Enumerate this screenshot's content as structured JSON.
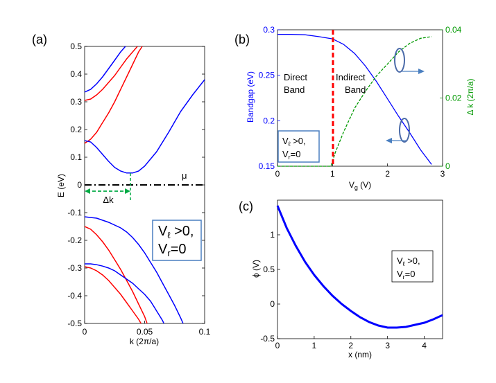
{
  "chart_data": [
    {
      "type": "line",
      "panel_label": "(a)",
      "xlabel": "k (2π/a)",
      "ylabel": "E (eV)",
      "xlim": [
        0,
        0.1
      ],
      "ylim": [
        -0.5,
        0.5
      ],
      "x_ticks": [
        "0",
        "0.05",
        "0.1"
      ],
      "y_ticks": [
        "-0.5",
        "-0.4",
        "-0.3",
        "-0.2",
        "-0.1",
        "0",
        "0.1",
        "0.2",
        "0.3",
        "0.4",
        "0.5"
      ],
      "series": [
        {
          "name": "blue-conduction-upper",
          "color": "#0000ff",
          "points": [
            [
              0,
              0.335
            ],
            [
              0.005,
              0.345
            ],
            [
              0.01,
              0.365
            ],
            [
              0.015,
              0.39
            ],
            [
              0.02,
              0.42
            ],
            [
              0.025,
              0.45
            ],
            [
              0.03,
              0.48
            ],
            [
              0.034,
              0.5
            ]
          ]
        },
        {
          "name": "red-conduction-upper",
          "color": "#ff0000",
          "points": [
            [
              0,
              0.305
            ],
            [
              0.005,
              0.31
            ],
            [
              0.01,
              0.325
            ],
            [
              0.015,
              0.345
            ],
            [
              0.02,
              0.37
            ],
            [
              0.025,
              0.395
            ],
            [
              0.03,
              0.425
            ],
            [
              0.035,
              0.455
            ],
            [
              0.04,
              0.48
            ],
            [
              0.044,
              0.5
            ]
          ]
        },
        {
          "name": "red-conduction-lower",
          "color": "#ff0000",
          "points": [
            [
              0,
              0.15
            ],
            [
              0.005,
              0.165
            ],
            [
              0.01,
              0.19
            ],
            [
              0.015,
              0.225
            ],
            [
              0.02,
              0.26
            ],
            [
              0.025,
              0.3
            ],
            [
              0.03,
              0.345
            ],
            [
              0.035,
              0.39
            ],
            [
              0.04,
              0.435
            ],
            [
              0.045,
              0.48
            ],
            [
              0.048,
              0.5
            ]
          ]
        },
        {
          "name": "blue-conduction-lower",
          "color": "#0000ff",
          "points": [
            [
              0,
              0.16
            ],
            [
              0.005,
              0.155
            ],
            [
              0.01,
              0.135
            ],
            [
              0.015,
              0.11
            ],
            [
              0.02,
              0.085
            ],
            [
              0.025,
              0.063
            ],
            [
              0.03,
              0.05
            ],
            [
              0.035,
              0.043
            ],
            [
              0.04,
              0.043
            ],
            [
              0.045,
              0.05
            ],
            [
              0.05,
              0.068
            ],
            [
              0.06,
              0.12
            ],
            [
              0.07,
              0.19
            ],
            [
              0.08,
              0.265
            ],
            [
              0.09,
              0.325
            ],
            [
              0.1,
              0.38
            ]
          ]
        },
        {
          "name": "blue-valence-upper",
          "color": "#0000ff",
          "points": [
            [
              0,
              -0.115
            ],
            [
              0.01,
              -0.12
            ],
            [
              0.02,
              -0.135
            ],
            [
              0.03,
              -0.155
            ],
            [
              0.035,
              -0.17
            ],
            [
              0.04,
              -0.19
            ],
            [
              0.045,
              -0.215
            ],
            [
              0.05,
              -0.245
            ],
            [
              0.055,
              -0.28
            ],
            [
              0.06,
              -0.315
            ],
            [
              0.065,
              -0.355
            ],
            [
              0.07,
              -0.395
            ],
            [
              0.075,
              -0.435
            ],
            [
              0.08,
              -0.48
            ],
            [
              0.082,
              -0.5
            ]
          ]
        },
        {
          "name": "red-valence-upper",
          "color": "#ff0000",
          "points": [
            [
              0,
              -0.15
            ],
            [
              0.005,
              -0.16
            ],
            [
              0.01,
              -0.18
            ],
            [
              0.015,
              -0.205
            ],
            [
              0.02,
              -0.235
            ],
            [
              0.025,
              -0.27
            ],
            [
              0.03,
              -0.305
            ],
            [
              0.035,
              -0.345
            ],
            [
              0.04,
              -0.385
            ],
            [
              0.045,
              -0.43
            ],
            [
              0.05,
              -0.475
            ],
            [
              0.052,
              -0.5
            ]
          ]
        },
        {
          "name": "blue-valence-lower",
          "color": "#0000ff",
          "points": [
            [
              0,
              -0.285
            ],
            [
              0.005,
              -0.285
            ],
            [
              0.01,
              -0.288
            ],
            [
              0.015,
              -0.293
            ],
            [
              0.02,
              -0.3
            ],
            [
              0.025,
              -0.31
            ],
            [
              0.03,
              -0.325
            ],
            [
              0.035,
              -0.34
            ],
            [
              0.04,
              -0.355
            ],
            [
              0.045,
              -0.375
            ],
            [
              0.05,
              -0.395
            ],
            [
              0.055,
              -0.42
            ],
            [
              0.06,
              -0.455
            ],
            [
              0.065,
              -0.49
            ],
            [
              0.066,
              -0.5
            ]
          ]
        },
        {
          "name": "red-valence-lower",
          "color": "#ff0000",
          "points": [
            [
              0,
              -0.295
            ],
            [
              0.005,
              -0.3
            ],
            [
              0.01,
              -0.31
            ],
            [
              0.015,
              -0.325
            ],
            [
              0.02,
              -0.345
            ],
            [
              0.025,
              -0.37
            ],
            [
              0.03,
              -0.395
            ],
            [
              0.035,
              -0.425
            ],
            [
              0.04,
              -0.455
            ],
            [
              0.045,
              -0.485
            ],
            [
              0.047,
              -0.5
            ]
          ]
        }
      ],
      "mu_line": {
        "label": "μ",
        "y": 0,
        "color": "#000000"
      },
      "delta_k": {
        "label": "Δk",
        "k": 0.038,
        "color": "#00aa44"
      },
      "annotation_box": {
        "line1_main": "V",
        "line1_sub": "ℓ",
        "line1_rest": " >0,",
        "line2_main": "V",
        "line2_sub": "r",
        "line2_rest": "=0",
        "border": "#4a7fc0"
      }
    },
    {
      "type": "line",
      "panel_label": "(b)",
      "xlabel_main": "V",
      "xlabel_sub": "g",
      "xlabel_rest": " (V)",
      "ylabel_left": "Bandgap (eV)",
      "ylabel_right": "Δ k (2π/a)",
      "xlim": [
        0,
        3
      ],
      "ylim_left": [
        0.15,
        0.3
      ],
      "ylim_right": [
        0,
        0.04
      ],
      "x_ticks": [
        "0",
        "1",
        "2",
        "3"
      ],
      "y_ticks_left": [
        "0.15",
        "0.2",
        "0.25",
        "0.3"
      ],
      "y_ticks_right": [
        "0",
        "0.02",
        "0.04"
      ],
      "left_color": "#0000ff",
      "right_color": "#009900",
      "series": [
        {
          "name": "Bandgap",
          "axis": "left",
          "color": "#0000ff",
          "points": [
            [
              0,
              0.295
            ],
            [
              0.25,
              0.295
            ],
            [
              0.5,
              0.2945
            ],
            [
              0.75,
              0.2925
            ],
            [
              1.0,
              0.29
            ],
            [
              1.2,
              0.284
            ],
            [
              1.4,
              0.274
            ],
            [
              1.6,
              0.26
            ],
            [
              1.8,
              0.243
            ],
            [
              2.0,
              0.224
            ],
            [
              2.2,
              0.205
            ],
            [
              2.4,
              0.187
            ],
            [
              2.6,
              0.168
            ],
            [
              2.8,
              0.152
            ]
          ]
        },
        {
          "name": "Delta k",
          "axis": "right",
          "color": "#009900",
          "dashed": true,
          "points": [
            [
              0,
              0.0
            ],
            [
              0.5,
              0.0
            ],
            [
              0.97,
              0.0
            ],
            [
              1.05,
              0.004
            ],
            [
              1.2,
              0.01
            ],
            [
              1.4,
              0.017
            ],
            [
              1.6,
              0.022
            ],
            [
              1.8,
              0.0265
            ],
            [
              2.0,
              0.03
            ],
            [
              2.2,
              0.0335
            ],
            [
              2.4,
              0.036
            ],
            [
              2.6,
              0.0375
            ],
            [
              2.8,
              0.038
            ]
          ]
        }
      ],
      "transition_line": {
        "x": 1.0,
        "color": "#ff0000"
      },
      "direct_label": [
        "Direct",
        "Band"
      ],
      "indirect_label": [
        "Indirect",
        "Band"
      ],
      "annotation_box": {
        "line1_main": "V",
        "line1_sub": "ℓ",
        "line1_rest": " >0,",
        "line2_main": "V",
        "line2_sub": "r",
        "line2_rest": "=0",
        "border": "#4a7fc0"
      }
    },
    {
      "type": "line",
      "panel_label": "(c)",
      "xlabel": "x (nm)",
      "ylabel": "ϕ (V)",
      "xlim": [
        0,
        4.5
      ],
      "ylim": [
        -0.5,
        1.5
      ],
      "x_ticks": [
        "0",
        "1",
        "2",
        "3",
        "4"
      ],
      "y_ticks": [
        "-0.5",
        "0",
        "0.5",
        "1"
      ],
      "series": [
        {
          "name": "phi",
          "color": "#0000ff",
          "points": [
            [
              0,
              1.42
            ],
            [
              0.25,
              1.1
            ],
            [
              0.5,
              0.84
            ],
            [
              0.75,
              0.61
            ],
            [
              1.0,
              0.42
            ],
            [
              1.25,
              0.26
            ],
            [
              1.5,
              0.12
            ],
            [
              1.75,
              0.0
            ],
            [
              2.0,
              -0.1
            ],
            [
              2.25,
              -0.19
            ],
            [
              2.5,
              -0.26
            ],
            [
              2.75,
              -0.31
            ],
            [
              3.0,
              -0.34
            ],
            [
              3.25,
              -0.34
            ],
            [
              3.5,
              -0.33
            ],
            [
              3.75,
              -0.3
            ],
            [
              4.0,
              -0.27
            ],
            [
              4.25,
              -0.22
            ],
            [
              4.5,
              -0.16
            ]
          ]
        }
      ],
      "annotation_box": {
        "line1_main": "V",
        "line1_sub": "ℓ",
        "line1_rest": " >0,",
        "line2_main": "V",
        "line2_sub": "r",
        "line2_rest": "=0",
        "border": "#000000"
      }
    }
  ]
}
